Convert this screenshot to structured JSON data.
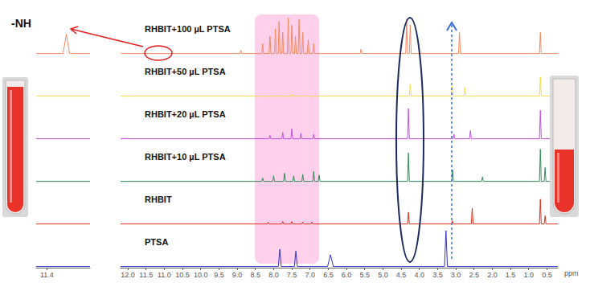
{
  "chart_data": [
    {
      "type": "line",
      "xlabel": "ppm",
      "xlim": [
        12.2,
        0.2
      ],
      "xticks": [
        {
          "value": 12,
          "label": "12.0"
        },
        11.5,
        {
          "value": 11,
          "label": "11.0"
        },
        10.5,
        {
          "value": 10,
          "label": "10.0"
        },
        9.5,
        {
          "value": 9,
          "label": "9.0"
        },
        8.5,
        {
          "value": 8,
          "label": "8.0"
        },
        7.5,
        {
          "value": 7,
          "label": "7.0"
        },
        6.5,
        {
          "value": 6,
          "label": "6.0"
        },
        5.5,
        {
          "value": 5,
          "label": "5.0"
        },
        4.5,
        {
          "value": 4,
          "label": "4.0"
        },
        3.5,
        {
          "value": 3,
          "label": "3.0"
        },
        2.5,
        {
          "value": 2,
          "label": "2.0"
        },
        1.5,
        {
          "value": 1,
          "label": "1.0"
        },
        0.5
      ],
      "ylim": [
        0,
        1
      ],
      "tick_labels": "x",
      "grid": false,
      "series": [
        {
          "name": "RHBIT+100 µL PTSA",
          "color": "#f4895f",
          "x": [
            12.2,
            8.925,
            8.9,
            8.875,
            8.325,
            8.3,
            8.275,
            8.125,
            8.1,
            8.075,
            7.975,
            7.95,
            7.925,
            7.875,
            7.85,
            7.825,
            7.775,
            7.75,
            7.725,
            7.625,
            7.6,
            7.575,
            7.525,
            7.5,
            7.475,
            7.425,
            7.4,
            7.375,
            7.325,
            7.3,
            7.275,
            7.225,
            7.2,
            7.175,
            7.075,
            7.05,
            7.025,
            6.925,
            6.9,
            6.875,
            5.625,
            5.6,
            5.575,
            4.375,
            4.35,
            4.325,
            4.275,
            4.25,
            4.225,
            2.925,
            2.9,
            2.875,
            0.705,
            0.68,
            0.655,
            0.2
          ],
          "values": [
            0.03,
            0.03,
            0.12,
            0.03,
            0.03,
            0.3,
            0.03,
            0.03,
            0.5,
            0.03,
            0.03,
            0.7,
            0.03,
            0.03,
            0.9,
            0.03,
            0.03,
            0.6,
            0.03,
            0.03,
            1.0,
            0.03,
            0.03,
            0.8,
            0.03,
            0.03,
            0.5,
            0.03,
            0.03,
            0.95,
            0.03,
            0.03,
            0.6,
            0.03,
            0.03,
            0.4,
            0.03,
            0.03,
            0.3,
            0.03,
            0.03,
            0.15,
            0.03,
            0.03,
            0.95,
            0.03,
            0.03,
            0.8,
            0.03,
            0.03,
            0.6,
            0.03,
            0.03,
            0.6,
            0.03,
            0.03
          ]
        },
        {
          "name": "RHBIT+50 µL PTSA",
          "color": "#f2dc4a",
          "x": [
            12.2,
            7.925,
            7.9,
            7.875,
            7.525,
            7.5,
            7.475,
            7.125,
            7.1,
            7.075,
            4.275,
            4.25,
            4.225,
            3.125,
            3.1,
            3.075,
            2.775,
            2.75,
            2.725,
            0.705,
            0.68,
            0.655,
            0.2
          ],
          "values": [
            0.03,
            0.03,
            0.06,
            0.03,
            0.03,
            0.08,
            0.03,
            0.03,
            0.06,
            0.03,
            0.03,
            0.35,
            0.03,
            0.03,
            0.3,
            0.03,
            0.03,
            0.25,
            0.03,
            0.03,
            0.55,
            0.03,
            0.03
          ]
        },
        {
          "name": "RHBIT+20 µL PTSA",
          "color": "#c04fdc",
          "x": [
            12.2,
            8.125,
            8.1,
            8.075,
            7.775,
            7.75,
            7.725,
            7.525,
            7.5,
            7.475,
            7.275,
            7.25,
            7.225,
            6.925,
            6.9,
            6.875,
            4.325,
            4.3,
            4.275,
            3.075,
            3.05,
            3.025,
            2.625,
            2.6,
            2.575,
            0.705,
            0.68,
            0.655,
            0.325,
            0.3,
            0.275,
            0.2
          ],
          "values": [
            0.03,
            0.03,
            0.12,
            0.03,
            0.03,
            0.2,
            0.03,
            0.03,
            0.3,
            0.03,
            0.03,
            0.18,
            0.03,
            0.03,
            0.15,
            0.03,
            0.03,
            0.85,
            0.03,
            0.03,
            0.15,
            0.03,
            0.03,
            0.25,
            0.03,
            0.03,
            0.8,
            0.03,
            0.03,
            0.15,
            0.03,
            0.03
          ]
        },
        {
          "name": "RHBIT+10 µL PTSA",
          "color": "#2e8b57",
          "x": [
            12.2,
            8.325,
            8.3,
            8.275,
            8.025,
            8.0,
            7.975,
            7.725,
            7.7,
            7.675,
            7.475,
            7.45,
            7.425,
            7.225,
            7.2,
            7.175,
            6.925,
            6.9,
            6.875,
            6.775,
            6.75,
            6.725,
            4.325,
            4.3,
            4.275,
            3.115,
            3.09,
            3.065,
            2.295,
            2.27,
            2.245,
            0.705,
            0.68,
            0.655,
            0.575,
            0.55,
            0.525,
            0.2
          ],
          "values": [
            0.03,
            0.03,
            0.12,
            0.03,
            0.03,
            0.18,
            0.03,
            0.03,
            0.25,
            0.03,
            0.03,
            0.18,
            0.03,
            0.03,
            0.22,
            0.03,
            0.03,
            0.3,
            0.03,
            0.03,
            0.2,
            0.03,
            0.03,
            0.8,
            0.03,
            0.03,
            0.35,
            0.03,
            0.03,
            0.15,
            0.03,
            0.03,
            0.9,
            0.03,
            0.03,
            0.4,
            0.03,
            0.03
          ]
        },
        {
          "name": "RHBIT",
          "color": "#e0301e",
          "x": [
            12.2,
            8.175,
            8.15,
            8.125,
            7.775,
            7.75,
            7.725,
            7.525,
            7.5,
            7.475,
            7.225,
            7.2,
            7.175,
            6.975,
            6.95,
            6.925,
            4.325,
            4.3,
            4.275,
            3.115,
            3.09,
            3.065,
            2.575,
            2.55,
            2.525,
            0.705,
            0.68,
            0.655,
            0.575,
            0.55,
            0.525,
            0.2
          ],
          "values": [
            0.03,
            0.03,
            0.08,
            0.03,
            0.03,
            0.1,
            0.03,
            0.03,
            0.1,
            0.03,
            0.03,
            0.08,
            0.03,
            0.03,
            0.08,
            0.03,
            0.03,
            0.35,
            0.03,
            0.03,
            0.12,
            0.03,
            0.03,
            0.45,
            0.03,
            0.03,
            0.7,
            0.03,
            0.03,
            0.25,
            0.03,
            0.03
          ]
        },
        {
          "name": "PTSA",
          "color": "#3434c4",
          "x": [
            12.2,
            7.87,
            7.83,
            7.79,
            7.43,
            7.39,
            7.35,
            6.52,
            6.44,
            6.36,
            3.31,
            3.27,
            3.23,
            0.2
          ],
          "values": [
            0.03,
            0.03,
            0.5,
            0.03,
            0.03,
            0.45,
            0.03,
            0.03,
            0.35,
            0.03,
            0.03,
            1.0,
            0.03,
            0.03
          ]
        }
      ]
    },
    {
      "type": "line",
      "annotations": [
        "-NH"
      ],
      "xlim": [
        11.5,
        11.0
      ],
      "xticks": [
        11.4
      ],
      "ylim": [
        0,
        1
      ],
      "tick_labels": "x",
      "grid": false,
      "series": [
        {
          "name": "RHBIT+100 µL PTSA",
          "color": "#f4895f",
          "x": [
            11.5,
            11.25,
            11.22,
            11.19,
            11.0
          ],
          "values": [
            0.03,
            0.03,
            0.55,
            0.03,
            0.03
          ]
        },
        {
          "name": "RHBIT+50 µL PTSA",
          "color": "#f2dc4a",
          "x": [
            11.5,
            11.0
          ],
          "values": [
            0.03,
            0.03
          ]
        },
        {
          "name": "RHBIT+20 µL PTSA",
          "color": "#c04fdc",
          "x": [
            11.5,
            11.0
          ],
          "values": [
            0.03,
            0.03
          ]
        },
        {
          "name": "RHBIT+10 µL PTSA",
          "color": "#2e8b57",
          "x": [
            11.5,
            11.0
          ],
          "values": [
            0.03,
            0.03
          ]
        },
        {
          "name": "RHBIT",
          "color": "#e0301e",
          "x": [
            11.5,
            11.0
          ],
          "values": [
            0.03,
            0.03
          ]
        },
        {
          "name": "PTSA",
          "color": "#3434c4",
          "x": [
            11.5,
            11.0
          ],
          "values": [
            0.03,
            0.03
          ]
        }
      ]
    }
  ]
}
